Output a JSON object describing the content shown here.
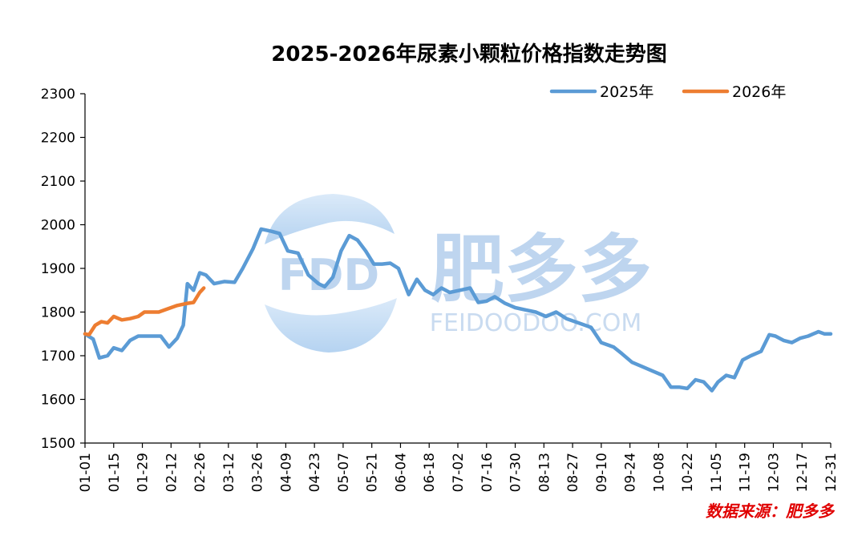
{
  "chart_data": {
    "type": "line",
    "title": "2025-2026年尿素小颗粒价格指数走势图",
    "xlabel": "",
    "ylabel": "",
    "ylim": [
      1500,
      2300
    ],
    "yticks": [
      1500,
      1600,
      1700,
      1800,
      1900,
      2000,
      2100,
      2200,
      2300
    ],
    "x_tick_labels": [
      "01-01",
      "01-15",
      "01-29",
      "02-12",
      "02-26",
      "03-12",
      "03-26",
      "04-09",
      "04-23",
      "05-07",
      "05-21",
      "06-04",
      "06-18",
      "07-02",
      "07-16",
      "07-30",
      "08-13",
      "08-27",
      "09-10",
      "09-24",
      "10-08",
      "10-22",
      "11-05",
      "11-19",
      "12-03",
      "12-17",
      "12-31"
    ],
    "grid": false,
    "legend_position": "top-right",
    "series": [
      {
        "name": "2025年",
        "color": "#5b9bd5",
        "x": [
          "01-01",
          "01-05",
          "01-08",
          "01-12",
          "01-15",
          "01-19",
          "01-23",
          "01-27",
          "02-03",
          "02-07",
          "02-11",
          "02-15",
          "02-18",
          "02-20",
          "02-23",
          "02-26",
          "03-01",
          "03-05",
          "03-10",
          "03-15",
          "03-19",
          "03-24",
          "03-28",
          "04-02",
          "04-06",
          "04-10",
          "04-15",
          "04-20",
          "04-25",
          "04-28",
          "05-02",
          "05-06",
          "05-10",
          "05-14",
          "05-18",
          "05-22",
          "05-26",
          "05-30",
          "06-03",
          "06-08",
          "06-12",
          "06-16",
          "06-20",
          "06-24",
          "06-28",
          "07-03",
          "07-08",
          "07-12",
          "07-16",
          "07-20",
          "07-25",
          "07-30",
          "08-04",
          "08-09",
          "08-14",
          "08-19",
          "08-24",
          "08-30",
          "09-05",
          "09-10",
          "09-16",
          "09-20",
          "09-25",
          "09-30",
          "10-05",
          "10-10",
          "10-14",
          "10-18",
          "10-22",
          "10-26",
          "10-30",
          "11-03",
          "11-06",
          "11-10",
          "11-14",
          "11-18",
          "11-22",
          "11-27",
          "12-01",
          "12-04",
          "12-08",
          "12-12",
          "12-16",
          "12-20",
          "12-25",
          "12-28",
          "12-31"
        ],
        "values": [
          1750,
          1738,
          1695,
          1700,
          1718,
          1712,
          1735,
          1745,
          1745,
          1745,
          1720,
          1740,
          1770,
          1865,
          1850,
          1890,
          1885,
          1865,
          1870,
          1868,
          1900,
          1945,
          1990,
          1985,
          1980,
          1940,
          1935,
          1885,
          1865,
          1858,
          1880,
          1940,
          1975,
          1965,
          1940,
          1910,
          1910,
          1912,
          1900,
          1840,
          1875,
          1850,
          1840,
          1855,
          1845,
          1850,
          1855,
          1822,
          1825,
          1835,
          1820,
          1810,
          1805,
          1800,
          1790,
          1800,
          1785,
          1775,
          1765,
          1730,
          1720,
          1705,
          1685,
          1675,
          1665,
          1655,
          1628,
          1628,
          1625,
          1645,
          1640,
          1620,
          1640,
          1655,
          1650,
          1690,
          1700,
          1710,
          1748,
          1745,
          1735,
          1730,
          1740,
          1745,
          1755,
          1750,
          1750
        ]
      },
      {
        "name": "2026年",
        "color": "#ed7d31",
        "x": [
          "01-01",
          "01-03",
          "01-06",
          "01-09",
          "01-12",
          "01-15",
          "01-19",
          "01-23",
          "01-27",
          "01-30",
          "02-03",
          "02-06",
          "02-09",
          "02-12",
          "02-15",
          "02-18",
          "02-20",
          "02-23",
          "02-26",
          "02-28"
        ],
        "values": [
          1750,
          1748,
          1770,
          1778,
          1775,
          1790,
          1782,
          1785,
          1790,
          1800,
          1800,
          1800,
          1805,
          1810,
          1815,
          1818,
          1820,
          1822,
          1845,
          1855
        ]
      }
    ]
  },
  "watermark": {
    "logo_text": "FDD",
    "brand_text": "肥多多",
    "url_text": "FEIDOODOO.COM"
  },
  "source_text": "数据来源：肥多多"
}
